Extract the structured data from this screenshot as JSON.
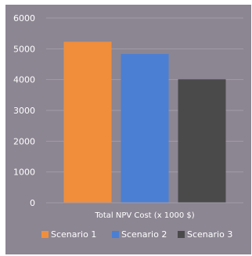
{
  "chart_data": {
    "type": "bar",
    "categories": [
      "Total NPV Cost (x 1000 $)"
    ],
    "series": [
      {
        "name": "Scenario 1",
        "values": [
          5230
        ],
        "color": "#f08e3b",
        "legend_label": "Scenario  1"
      },
      {
        "name": "Scenario 2",
        "values": [
          4830
        ],
        "color": "#4a7fd4",
        "legend_label": "Scenario 2"
      },
      {
        "name": "Scenario 3",
        "values": [
          4010
        ],
        "color": "#4a4a4a",
        "legend_label": "Scenario 3"
      }
    ],
    "title": "",
    "xlabel": "Total NPV Cost (x 1000 $)",
    "ylabel": "",
    "ylim": [
      0,
      6000
    ],
    "yticks": [
      "0",
      "1000",
      "2000",
      "3000",
      "4000",
      "5000",
      "6000"
    ],
    "grid": true,
    "legend": "bottom",
    "colors": {
      "background": "#8c8592",
      "gridline": "#a29ca8",
      "text": "#ffffff"
    }
  }
}
